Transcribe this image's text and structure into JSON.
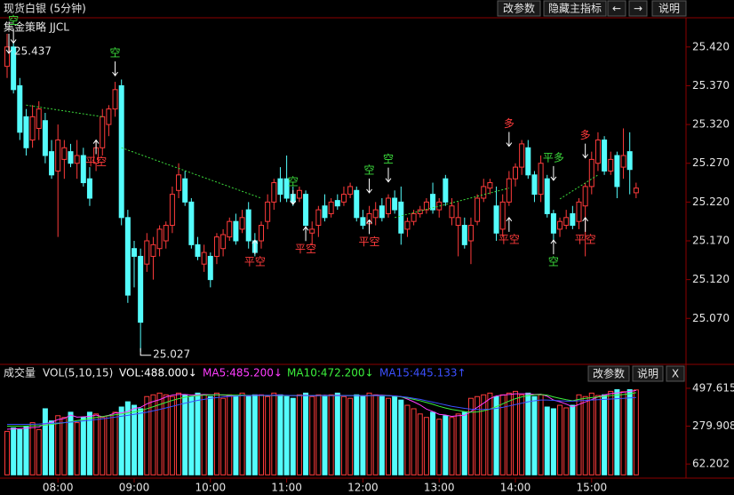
{
  "header": {
    "title": "现货白银 (5分钟)",
    "buttons": [
      "改参数",
      "隐藏主指标",
      "←",
      "→",
      "说明"
    ]
  },
  "chart_data": [
    {
      "type": "candlestick",
      "title": "集金策略 JJCL",
      "categories": [
        null,
        null,
        null,
        null,
        null,
        null,
        null,
        null,
        "08:00",
        null,
        null,
        null,
        null,
        null,
        null,
        null,
        null,
        null,
        null,
        null,
        "09:00",
        null,
        null,
        null,
        null,
        null,
        null,
        null,
        null,
        null,
        null,
        null,
        "10:00",
        null,
        null,
        null,
        null,
        null,
        null,
        null,
        null,
        null,
        null,
        null,
        "11:00",
        null,
        null,
        null,
        null,
        null,
        null,
        null,
        null,
        null,
        null,
        null,
        "12:00",
        null,
        null,
        null,
        null,
        null,
        null,
        null,
        null,
        null,
        null,
        null,
        "13:00",
        null,
        null,
        null,
        null,
        null,
        null,
        null,
        null,
        null,
        null,
        null,
        "14:00",
        null,
        null,
        null,
        null,
        null,
        null,
        null,
        null,
        null,
        null,
        null,
        "15:00",
        null,
        null,
        null,
        null,
        null,
        null,
        null
      ],
      "open": [
        25.395,
        25.42,
        25.37,
        25.33,
        25.3,
        25.315,
        25.325,
        25.285,
        25.26,
        25.275,
        25.285,
        25.27,
        25.28,
        25.25,
        25.27,
        25.29,
        25.32,
        25.34,
        25.37,
        25.2,
        25.16,
        25.15,
        25.14,
        25.15,
        25.16,
        25.17,
        25.19,
        25.235,
        25.25,
        25.22,
        25.165,
        25.14,
        25.15,
        25.15,
        25.16,
        25.175,
        25.195,
        25.185,
        25.21,
        25.17,
        25.17,
        25.195,
        25.22,
        25.25,
        25.25,
        25.23,
        25.225,
        25.23,
        25.18,
        25.19,
        25.215,
        25.205,
        25.222,
        25.22,
        25.23,
        25.235,
        25.2,
        25.192,
        25.2,
        25.215,
        25.205,
        25.225,
        25.22,
        25.185,
        25.195,
        25.205,
        25.21,
        25.23,
        25.21,
        25.25,
        25.2,
        25.19,
        25.19,
        25.17,
        25.195,
        25.225,
        25.238,
        25.215,
        25.185,
        25.22,
        25.25,
        25.265,
        25.29,
        25.255,
        25.23,
        25.25,
        25.205,
        25.185,
        25.19,
        25.205,
        25.195,
        25.215,
        25.24,
        25.27,
        25.3,
        25.26,
        25.28,
        25.265,
        25.285,
        25.232
      ],
      "high": [
        25.437,
        25.425,
        25.38,
        25.34,
        25.345,
        25.35,
        25.335,
        25.3,
        25.32,
        25.3,
        25.295,
        25.3,
        25.29,
        25.265,
        25.3,
        25.34,
        25.345,
        25.375,
        25.378,
        25.21,
        25.17,
        25.16,
        25.18,
        25.175,
        25.19,
        25.195,
        25.24,
        25.27,
        25.26,
        25.225,
        25.175,
        25.165,
        25.155,
        25.18,
        25.185,
        25.2,
        25.205,
        25.21,
        25.22,
        25.18,
        25.195,
        25.23,
        25.25,
        25.265,
        25.28,
        25.24,
        25.24,
        25.235,
        25.195,
        25.215,
        25.23,
        25.225,
        25.23,
        25.24,
        25.245,
        25.24,
        25.21,
        25.215,
        25.22,
        25.225,
        25.23,
        25.235,
        25.24,
        25.2,
        25.21,
        25.215,
        25.225,
        25.245,
        25.225,
        25.255,
        25.225,
        25.22,
        25.2,
        25.2,
        25.23,
        25.25,
        25.25,
        25.24,
        25.23,
        25.26,
        25.27,
        25.3,
        25.3,
        25.26,
        25.28,
        25.255,
        25.21,
        25.2,
        25.21,
        25.215,
        25.225,
        25.245,
        25.285,
        25.31,
        25.305,
        25.285,
        25.285,
        25.315,
        25.31,
        25.245
      ],
      "low": [
        25.38,
        25.36,
        25.3,
        25.28,
        25.29,
        25.3,
        25.27,
        25.25,
        25.175,
        25.25,
        25.265,
        25.25,
        25.24,
        25.215,
        25.26,
        25.28,
        25.305,
        25.33,
        25.19,
        25.09,
        25.11,
        25.027,
        25.13,
        25.12,
        25.15,
        25.16,
        25.18,
        25.225,
        25.215,
        25.16,
        25.145,
        25.13,
        25.11,
        25.14,
        25.15,
        25.17,
        25.165,
        25.18,
        25.16,
        25.15,
        25.16,
        25.185,
        25.21,
        25.22,
        25.22,
        25.215,
        25.22,
        25.18,
        25.165,
        25.175,
        25.195,
        25.2,
        25.21,
        25.215,
        25.225,
        25.195,
        25.185,
        25.185,
        25.19,
        25.195,
        25.2,
        25.205,
        25.165,
        25.175,
        25.19,
        25.2,
        25.205,
        25.205,
        25.2,
        25.215,
        25.19,
        25.15,
        25.16,
        25.14,
        25.19,
        25.22,
        25.23,
        25.17,
        25.175,
        25.215,
        25.24,
        25.255,
        25.25,
        25.22,
        25.22,
        25.2,
        25.17,
        25.175,
        25.185,
        25.185,
        25.185,
        25.15,
        25.23,
        25.26,
        25.255,
        25.255,
        25.225,
        25.25,
        25.23,
        25.225
      ],
      "close": [
        25.42,
        25.365,
        25.31,
        25.29,
        25.33,
        25.34,
        25.28,
        25.255,
        25.3,
        25.29,
        25.27,
        25.28,
        25.245,
        25.225,
        25.29,
        25.33,
        25.34,
        25.365,
        25.2,
        25.1,
        25.15,
        25.065,
        25.17,
        25.165,
        25.185,
        25.19,
        25.23,
        25.255,
        25.22,
        25.165,
        25.15,
        25.155,
        25.12,
        25.175,
        25.178,
        25.195,
        25.17,
        25.2,
        25.17,
        25.155,
        25.19,
        25.22,
        25.245,
        25.23,
        25.225,
        25.22,
        25.235,
        25.19,
        25.185,
        25.21,
        25.2,
        25.22,
        25.215,
        25.23,
        25.24,
        25.2,
        25.19,
        25.205,
        25.21,
        25.2,
        25.225,
        25.21,
        25.18,
        25.195,
        25.205,
        25.21,
        25.22,
        25.21,
        25.22,
        25.22,
        25.215,
        25.2,
        25.165,
        25.19,
        25.225,
        25.24,
        25.245,
        25.18,
        25.22,
        25.25,
        25.265,
        25.295,
        25.255,
        25.23,
        25.27,
        25.205,
        25.18,
        25.195,
        25.2,
        25.19,
        25.22,
        25.24,
        25.275,
        25.3,
        25.26,
        25.275,
        25.24,
        25.28,
        25.262,
        25.238
      ],
      "up_color": "#ff3b3b",
      "down_color": "#54fcfc",
      "ylim": [
        25.013,
        25.437
      ],
      "yticks": [
        {
          "value": 25.07,
          "label": "25.070"
        },
        {
          "value": 25.12,
          "label": "25.120"
        },
        {
          "value": 25.17,
          "label": "25.170"
        },
        {
          "value": 25.22,
          "label": "25.220"
        },
        {
          "value": 25.27,
          "label": "25.270"
        },
        {
          "value": 25.32,
          "label": "25.320"
        },
        {
          "value": 25.37,
          "label": "25.370"
        },
        {
          "value": 25.42,
          "label": "25.420"
        }
      ],
      "max_label": {
        "index": 0,
        "value": 25.437
      },
      "min_label": {
        "index": 21,
        "value": 25.027
      },
      "annotations": [
        {
          "text": "空",
          "x": 1,
          "y": 25.425,
          "side": "above",
          "color": "#3cdc3c"
        },
        {
          "text": "空",
          "x": 17,
          "y": 25.383,
          "side": "above",
          "color": "#3cdc3c"
        },
        {
          "text": "平空",
          "x": 14,
          "y": 25.3,
          "side": "below",
          "color": "#ff3b3b"
        },
        {
          "text": "平空",
          "x": 39,
          "y": 25.171,
          "side": "below",
          "color": "#ff3b3b"
        },
        {
          "text": "空",
          "x": 45,
          "y": 25.217,
          "side": "above",
          "color": "#3cdc3c"
        },
        {
          "text": "平空",
          "x": 47,
          "y": 25.188,
          "side": "below",
          "color": "#ff3b3b"
        },
        {
          "text": "空",
          "x": 57,
          "y": 25.232,
          "side": "above",
          "color": "#3cdc3c"
        },
        {
          "text": "空",
          "x": 60,
          "y": 25.246,
          "side": "above",
          "color": "#3cdc3c"
        },
        {
          "text": "平空",
          "x": 57,
          "y": 25.197,
          "side": "below",
          "color": "#ff3b3b"
        },
        {
          "text": "多",
          "x": 79,
          "y": 25.292,
          "side": "above",
          "color": "#ff3b3b"
        },
        {
          "text": "平空",
          "x": 79,
          "y": 25.2,
          "side": "below",
          "color": "#ff3b3b"
        },
        {
          "text": "平多",
          "x": 86,
          "y": 25.248,
          "side": "above",
          "color": "#3cdc3c"
        },
        {
          "text": "空",
          "x": 86,
          "y": 25.171,
          "side": "below",
          "color": "#3cdc3c"
        },
        {
          "text": "多",
          "x": 91,
          "y": 25.277,
          "side": "above",
          "color": "#ff3b3b"
        },
        {
          "text": "平空",
          "x": 91,
          "y": 25.2,
          "side": "below",
          "color": "#ff3b3b"
        }
      ],
      "signal_lines": [
        {
          "x": [
            3,
            15
          ],
          "y": [
            25.345,
            25.33
          ],
          "color": "#3cdc3c"
        },
        {
          "x": [
            18,
            40
          ],
          "y": [
            25.29,
            25.225
          ],
          "color": "#3cdc3c"
        },
        {
          "x": [
            61,
            79
          ],
          "y": [
            25.2,
            25.238
          ],
          "color": "#3cdc3c"
        },
        {
          "x": [
            87,
            93
          ],
          "y": [
            25.224,
            25.255
          ],
          "color": "#3cdc3c"
        }
      ]
    },
    {
      "type": "bar",
      "title": "成交量",
      "subtitle": "VOL(5,10,15)",
      "buttons": [
        "改参数",
        "说明",
        "X"
      ],
      "up_color": "#ff3b3b",
      "down_color": "#54fcfc",
      "ylim": [
        -18.8,
        533
      ],
      "yticks": [
        62.202,
        279.908,
        497.615
      ],
      "series": [
        {
          "name": "VOL:488.000↓",
          "type": "bar",
          "color": "#ffffff",
          "values": [
            250,
            270,
            260,
            280,
            300,
            260,
            380,
            310,
            340,
            330,
            360,
            300,
            330,
            360,
            350,
            330,
            340,
            360,
            390,
            420,
            400,
            380,
            450,
            460,
            470,
            460,
            450,
            470,
            460,
            450,
            470,
            460,
            450,
            470,
            440,
            460,
            450,
            470,
            450,
            460,
            460,
            450,
            470,
            460,
            450,
            440,
            460,
            470,
            450,
            460,
            450,
            460,
            470,
            450,
            440,
            460,
            450,
            470,
            460,
            450,
            440,
            450,
            430,
            400,
            380,
            350,
            330,
            360,
            320,
            340,
            330,
            350,
            360,
            440,
            450,
            460,
            470,
            450,
            460,
            470,
            480,
            460,
            470,
            450,
            460,
            390,
            380,
            400,
            385,
            400,
            460,
            450,
            470,
            456,
            460,
            480,
            490,
            478,
            490,
            488
          ]
        },
        {
          "name": "MA5:485.200↓",
          "type": "line",
          "color": "#ff3cff",
          "values": [
            262,
            264,
            266,
            268,
            272,
            274,
            294,
            302,
            318,
            324,
            344,
            332,
            334,
            336,
            344,
            334,
            342,
            356,
            356,
            364,
            382,
            388,
            408,
            422,
            432,
            448,
            458,
            462,
            462,
            458,
            460,
            462,
            460,
            460,
            458,
            456,
            454,
            458,
            454,
            458,
            458,
            454,
            458,
            458,
            456,
            456,
            456,
            458,
            454,
            456,
            458,
            456,
            458,
            456,
            456,
            456,
            454,
            456,
            458,
            458,
            456,
            454,
            450,
            436,
            420,
            402,
            378,
            364,
            348,
            344,
            336,
            340,
            342,
            364,
            388,
            412,
            438,
            454,
            458,
            462,
            466,
            466,
            466,
            462,
            464,
            452,
            430,
            420,
            407,
            391,
            405,
            419,
            433,
            448,
            459,
            467,
            471,
            475,
            480,
            485.2
          ]
        },
        {
          "name": "MA10:472.200↓",
          "type": "line",
          "color": "#3cf03c",
          "values": [
            280,
            280,
            280,
            281,
            282,
            283,
            286,
            290,
            295,
            300,
            305,
            312,
            318,
            325,
            330,
            335,
            340,
            345,
            350,
            356,
            362,
            370,
            380,
            392,
            404,
            416,
            428,
            438,
            446,
            452,
            455,
            458,
            459,
            460,
            460,
            459,
            458,
            458,
            457,
            457,
            456,
            456,
            456,
            456,
            456,
            456,
            456,
            456,
            456,
            456,
            456,
            456,
            456,
            456,
            456,
            456,
            456,
            456,
            456,
            456,
            455,
            452,
            448,
            442,
            434,
            426,
            416,
            406,
            394,
            384,
            376,
            370,
            364,
            360,
            362,
            368,
            378,
            392,
            408,
            424,
            438,
            448,
            456,
            460,
            462,
            458,
            448,
            440,
            432,
            426,
            434,
            440,
            444,
            448,
            452,
            456,
            458,
            462,
            466,
            472.2
          ]
        },
        {
          "name": "MA15:445.133↑",
          "type": "line",
          "color": "#3c50ff",
          "values": [
            290,
            290,
            290,
            290,
            291,
            292,
            294,
            296,
            298,
            300,
            303,
            306,
            310,
            314,
            318,
            322,
            327,
            332,
            337,
            342,
            348,
            354,
            360,
            368,
            376,
            385,
            394,
            403,
            412,
            420,
            428,
            434,
            440,
            444,
            448,
            451,
            453,
            455,
            456,
            457,
            457,
            457,
            457,
            457,
            457,
            456,
            456,
            456,
            456,
            456,
            456,
            456,
            456,
            456,
            456,
            456,
            456,
            456,
            456,
            456,
            455,
            453,
            450,
            446,
            440,
            434,
            426,
            418,
            410,
            402,
            394,
            388,
            382,
            378,
            376,
            376,
            378,
            382,
            388,
            396,
            404,
            412,
            420,
            426,
            430,
            430,
            428,
            426,
            424,
            424,
            426,
            428,
            430,
            432,
            434,
            436,
            438,
            440,
            442,
            445.133
          ]
        }
      ]
    }
  ]
}
